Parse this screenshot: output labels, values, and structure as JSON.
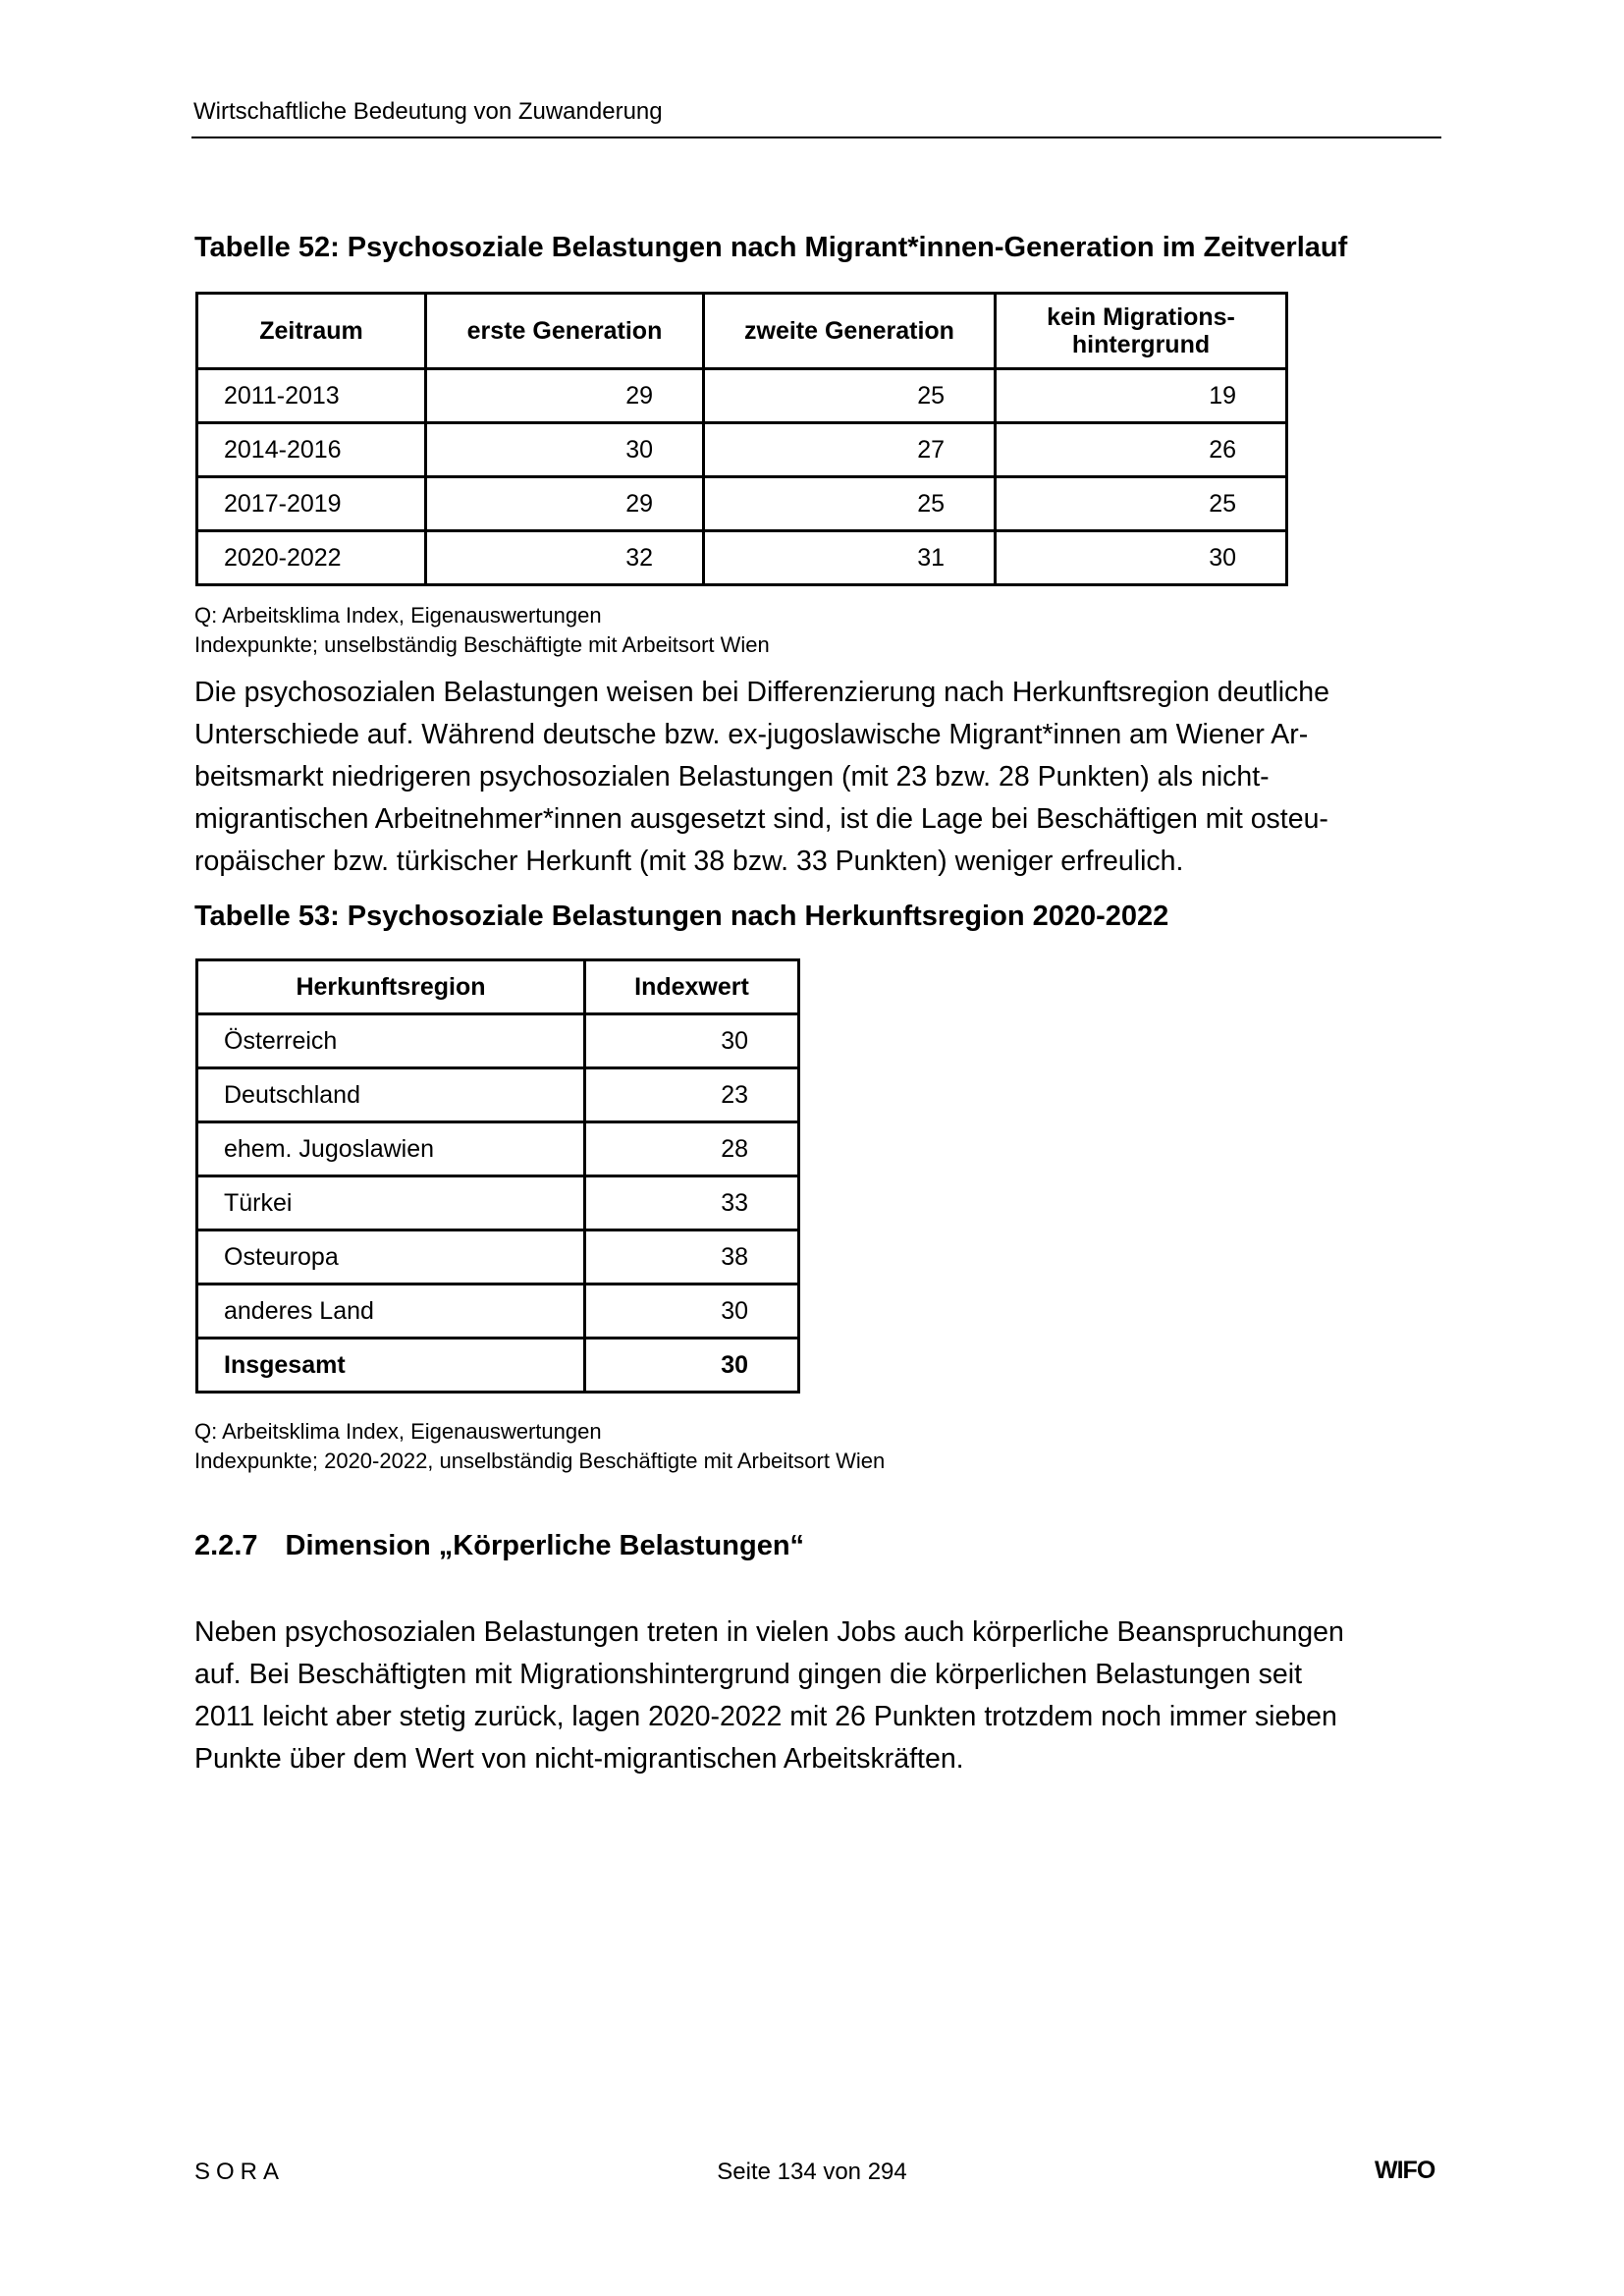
{
  "header": {
    "title": "Wirtschaftliche Bedeutung von Zuwanderung"
  },
  "table52": {
    "caption": "Tabelle 52: Psychosoziale Belastungen nach Migrant*innen-Generation im Zeitverlauf",
    "columns": [
      "Zeitraum",
      "erste Generation",
      "zweite Generation",
      "kein Migrations-\nhintergrund"
    ],
    "col4_line1": "kein Migrations-",
    "col4_line2": "hintergrund",
    "rows": [
      [
        "2011-2013",
        "29",
        "25",
        "19"
      ],
      [
        "2014-2016",
        "30",
        "27",
        "26"
      ],
      [
        "2017-2019",
        "29",
        "25",
        "25"
      ],
      [
        "2020-2022",
        "32",
        "31",
        "30"
      ]
    ],
    "source": "Q: Arbeitsklima Index, Eigenauswertungen",
    "note": "Indexpunkte; unselbständig Beschäftigte mit Arbeitsort Wien"
  },
  "paragraph1": [
    "Die psychosozialen Belastungen weisen bei Differenzierung nach Herkunftsregion deutliche",
    "Unterschiede auf. Während deutsche bzw. ex-jugoslawische Migrant*innen am Wiener Ar-",
    "beitsmarkt niedrigeren psychosozialen Belastungen (mit 23 bzw. 28 Punkten) als nicht-",
    "migrantischen Arbeitnehmer*innen ausgesetzt sind, ist die Lage bei Beschäftigen mit osteu-",
    "ropäischer bzw. türkischer Herkunft (mit 38 bzw. 33 Punkten) weniger erfreulich."
  ],
  "table53": {
    "caption": "Tabelle 53: Psychosoziale Belastungen nach Herkunftsregion 2020-2022",
    "columns": [
      "Herkunftsregion",
      "Indexwert"
    ],
    "rows": [
      [
        "Österreich",
        "30"
      ],
      [
        "Deutschland",
        "23"
      ],
      [
        "ehem. Jugoslawien",
        "28"
      ],
      [
        "Türkei",
        "33"
      ],
      [
        "Osteuropa",
        "38"
      ],
      [
        "anderes Land",
        "30"
      ],
      [
        "Insgesamt",
        "30"
      ]
    ],
    "source": "Q: Arbeitsklima Index, Eigenauswertungen",
    "note": "Indexpunkte; 2020-2022, unselbständig Beschäftigte mit Arbeitsort Wien"
  },
  "section": {
    "number": "2.2.7",
    "title": "Dimension „Körperliche Belastungen“"
  },
  "paragraph2": [
    "Neben psychosozialen Belastungen treten in vielen Jobs auch körperliche Beanspruchungen",
    "auf. Bei Beschäftigten mit Migrationshintergrund gingen die körperlichen Belastungen seit",
    "2011 leicht aber stetig zurück, lagen 2020-2022 mit 26 Punkten trotzdem noch immer sieben",
    "Punkte über dem Wert von nicht-migrantischen Arbeitskräften."
  ],
  "footer": {
    "left": "SORA",
    "center": "Seite 134 von 294",
    "right": "WIFO"
  }
}
